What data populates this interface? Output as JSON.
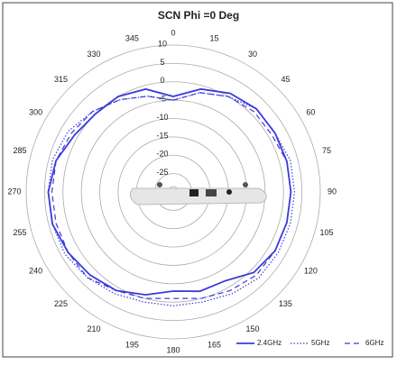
{
  "chart_data": {
    "type": "polar",
    "title": "SCN Phi =0 Deg",
    "angles": [
      0,
      15,
      30,
      45,
      60,
      75,
      90,
      105,
      120,
      135,
      150,
      165,
      180,
      195,
      210,
      225,
      240,
      255,
      270,
      285,
      300,
      315,
      330,
      345
    ],
    "rlim": [
      -30,
      10
    ],
    "rticks": [
      -25,
      -20,
      -15,
      -10,
      -5,
      0,
      5,
      10
    ],
    "grid": true,
    "legend": "bottom-right",
    "series": [
      {
        "name": "2.4GHz",
        "color": "#3b3bd9",
        "dash": "solid",
        "values": [
          -4,
          -1,
          1,
          2,
          2,
          2,
          2,
          2,
          2,
          1,
          -2,
          -2,
          -3,
          -1,
          1,
          2,
          3,
          4,
          4,
          3,
          1,
          0,
          0,
          -1
        ]
      },
      {
        "name": "5GHz",
        "color": "#3b3bd9",
        "dash": "dotted",
        "values": [
          -5,
          -2,
          0,
          2,
          2,
          3,
          3,
          3,
          3,
          3,
          2,
          1,
          1,
          1,
          2,
          3,
          4,
          4,
          4,
          4,
          3,
          1,
          -1,
          -3
        ]
      },
      {
        "name": "6GHz",
        "color": "#3b3bd9",
        "dash": "dashed",
        "values": [
          -5,
          -2,
          0,
          1,
          1,
          2,
          2,
          2,
          2,
          2,
          1,
          0,
          -1,
          0,
          1,
          3,
          3,
          3,
          3,
          3,
          2,
          1,
          -1,
          -3
        ]
      }
    ]
  }
}
